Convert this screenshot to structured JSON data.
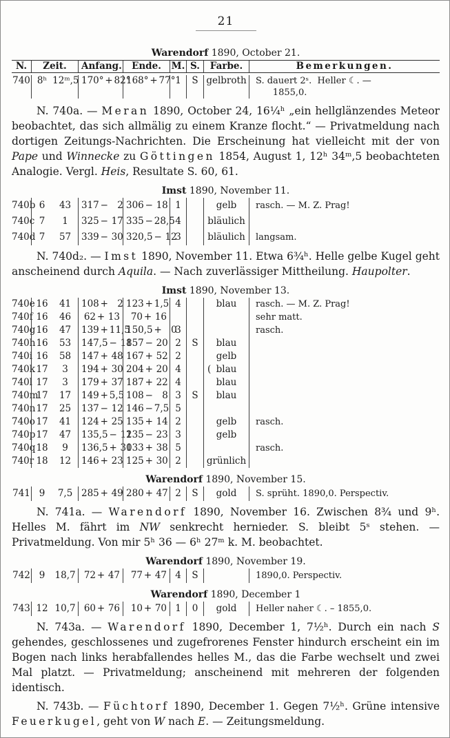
{
  "page": {
    "number": "21"
  },
  "table_headers": [
    "N.",
    "Zeit.",
    "Anfang.",
    "Ende.",
    "M.",
    "S.",
    "Farbe.",
    "Bemerkungen."
  ],
  "sections": [
    {
      "type": "title",
      "seg": [
        {
          "t": "Warendorf",
          "st": "b"
        },
        {
          "t": " 1890, October 21."
        }
      ]
    },
    {
      "type": "table",
      "header": true,
      "rows": [
        {
          "n": "740",
          "h": "8ʰ",
          "min": "12ᵐ,5",
          "anf": [
            "170°",
            "+",
            "82°"
          ],
          "end": [
            "168°",
            "+",
            "77°"
          ],
          "m": "1",
          "s": "S",
          "farbe": "gelbroth",
          "bem": "S. dauert 2ˢ.  Heller ☾. —\n      1855,0."
        }
      ]
    },
    {
      "type": "para",
      "seg": [
        {
          "t": "N. 740a. — "
        },
        {
          "t": "Meran",
          "st": "sp"
        },
        {
          "t": " 1890, October 24, 16¼ʰ „ein hellglänzendes Meteor beobachtet, das sich allmälig zu einem Kranze flocht.“ — Privatmeldung nach dortigen Zeitungs-Nachrichten.  Die Erscheinung hat vielleicht mit der von "
        },
        {
          "t": "Pape",
          "st": "i"
        },
        {
          "t": " und "
        },
        {
          "t": "Winnecke",
          "st": "i"
        },
        {
          "t": " zu "
        },
        {
          "t": "Göttingen",
          "st": "sp"
        },
        {
          "t": " 1854, August 1, 12ʰ 34ᵐ,5 beobachteten Analogie. Vergl. "
        },
        {
          "t": "Heis",
          "st": "i"
        },
        {
          "t": ", Resultate S. 60, 61."
        }
      ]
    },
    {
      "type": "title",
      "seg": [
        {
          "t": "Imst",
          "st": "b"
        },
        {
          "t": " 1890, November 11."
        }
      ]
    },
    {
      "type": "table",
      "rows": [
        {
          "n": "740b",
          "h": "6",
          "min": "43",
          "anf": [
            "317",
            "−",
            "2"
          ],
          "end": [
            "306",
            "−",
            "18"
          ],
          "m": "1",
          "s": "",
          "farbe": "gelb",
          "bem": "rasch. — M. Z. Prag!"
        },
        {
          "n": "740c",
          "h": "7",
          "min": "1",
          "anf": [
            "325",
            "−",
            "17"
          ],
          "end": [
            "335",
            "−",
            "28,5"
          ],
          "m": "4",
          "s": "",
          "farbe": "bläulich",
          "bem": ""
        },
        {
          "n": "740d",
          "h": "7",
          "min": "57",
          "anf": [
            "339",
            "−",
            "30"
          ],
          "end": [
            "320,5",
            "−",
            "12"
          ],
          "m": "3",
          "s": "",
          "farbe": "bläulich",
          "bem": "langsam."
        }
      ]
    },
    {
      "type": "para",
      "seg": [
        {
          "t": "N. 740d₂. — "
        },
        {
          "t": "Imst",
          "st": "sp"
        },
        {
          "t": " 1890, November 11. Etwa 6¾ʰ.  Helle gelbe Kugel geht anscheinend durch "
        },
        {
          "t": "Aquila",
          "st": "i"
        },
        {
          "t": ". — Nach zuverlässiger Mittheilung.  "
        },
        {
          "t": "Haupolter",
          "st": "i"
        },
        {
          "t": "."
        }
      ]
    },
    {
      "type": "title",
      "seg": [
        {
          "t": "Imst",
          "st": "b"
        },
        {
          "t": " 1890, November 13."
        }
      ]
    },
    {
      "type": "table",
      "rows": [
        {
          "n": "740e",
          "h": "16",
          "min": "41",
          "anf": [
            "108",
            "+",
            "2"
          ],
          "end": [
            "123",
            "+",
            "1,5"
          ],
          "m": "4",
          "s": "",
          "farbe": "blau",
          "bem": "rasch. — M. Z. Prag!"
        },
        {
          "n": "740f",
          "h": "16",
          "min": "46",
          "anf": [
            "62",
            "+",
            "13"
          ],
          "end": [
            "70",
            "+",
            "16"
          ],
          "m": "",
          "s": "",
          "farbe": "",
          "bem": "sehr matt."
        },
        {
          "n": "740g",
          "h": "16",
          "min": "47",
          "anf": [
            "139",
            "+",
            "11,5"
          ],
          "end": [
            "150,5",
            "+",
            "0"
          ],
          "m": "3",
          "s": "",
          "farbe": "",
          "bem": "rasch."
        },
        {
          "n": "740h",
          "h": "16",
          "min": "53",
          "anf": [
            "147,5",
            "−",
            "18"
          ],
          "end": [
            "157",
            "−",
            "20"
          ],
          "m": "2",
          "s": "S",
          "farbe": "blau",
          "bem": ""
        },
        {
          "n": "740i",
          "h": "16",
          "min": "58",
          "anf": [
            "147",
            "+",
            "48"
          ],
          "end": [
            "167",
            "+",
            "52"
          ],
          "m": "2",
          "s": "",
          "farbe": "gelb",
          "bem": ""
        },
        {
          "n": "740k",
          "h": "17",
          "min": "3",
          "anf": [
            "194",
            "+",
            "30"
          ],
          "end": [
            "204",
            "+",
            "20"
          ],
          "m": "4",
          "s": "",
          "farbe": "blau",
          "mark": "(",
          "bem": ""
        },
        {
          "n": "740l",
          "h": "17",
          "min": "3",
          "anf": [
            "179",
            "+",
            "37"
          ],
          "end": [
            "187",
            "+",
            "22"
          ],
          "m": "4",
          "s": "",
          "farbe": "blau",
          "bem": ""
        },
        {
          "n": "740m",
          "h": "17",
          "min": "17",
          "anf": [
            "149",
            "+",
            "5,5"
          ],
          "end": [
            "108",
            "−",
            "8"
          ],
          "m": "3",
          "s": "S",
          "farbe": "blau",
          "bem": ""
        },
        {
          "n": "740n",
          "h": "17",
          "min": "25",
          "anf": [
            "137",
            "−",
            "12"
          ],
          "end": [
            "146",
            "−",
            "7,5"
          ],
          "m": "5",
          "s": "",
          "farbe": "",
          "bem": ""
        },
        {
          "n": "740o",
          "h": "17",
          "min": "41",
          "anf": [
            "124",
            "+",
            "25"
          ],
          "end": [
            "135",
            "+",
            "14"
          ],
          "m": "2",
          "s": "",
          "farbe": "gelb",
          "bem": "rasch."
        },
        {
          "n": "740p",
          "h": "17",
          "min": "47",
          "anf": [
            "135,5",
            "−",
            "12"
          ],
          "end": [
            "135",
            "−",
            "23"
          ],
          "m": "3",
          "s": "",
          "farbe": "gelb",
          "bem": ""
        },
        {
          "n": "740q",
          "h": "18",
          "min": "9",
          "anf": [
            "136,5",
            "+",
            "30"
          ],
          "end": [
            "133",
            "+",
            "38"
          ],
          "m": "5",
          "s": "",
          "farbe": "",
          "bem": "rasch."
        },
        {
          "n": "740r",
          "h": "18",
          "min": "12",
          "anf": [
            "146",
            "+",
            "23"
          ],
          "end": [
            "125",
            "+",
            "30"
          ],
          "m": "2",
          "s": "",
          "farbe": "grünlich",
          "bem": ""
        }
      ]
    },
    {
      "type": "title",
      "seg": [
        {
          "t": "Warendorf",
          "st": "b"
        },
        {
          "t": " 1890, November 15."
        }
      ]
    },
    {
      "type": "table",
      "rows": [
        {
          "n": "741",
          "h": "9",
          "min": "7,5",
          "anf": [
            "285",
            "+",
            "49"
          ],
          "end": [
            "280",
            "+",
            "47"
          ],
          "m": "2",
          "s": "S",
          "farbe": "gold",
          "bem": "S. sprüht. 1890,0. Perspectiv."
        }
      ]
    },
    {
      "type": "para",
      "seg": [
        {
          "t": "N. 741a. — "
        },
        {
          "t": "Warendorf",
          "st": "sp"
        },
        {
          "t": " 1890, November 16. Zwischen 8¾ und 9ʰ.  Helles M. fährt im "
        },
        {
          "t": "NW",
          "st": "i"
        },
        {
          "t": " senkrecht hernieder. S. bleibt 5ˢ stehen. — Privatmeldung. Von mir 5ʰ 36 — 6ʰ 27ᵐ k. M. beobachtet."
        }
      ]
    },
    {
      "type": "title",
      "seg": [
        {
          "t": "Warendorf",
          "st": "b"
        },
        {
          "t": " 1890, November 19."
        }
      ]
    },
    {
      "type": "table",
      "rows": [
        {
          "n": "742",
          "h": "9",
          "min": "18,7",
          "anf": [
            "72",
            "+",
            "47"
          ],
          "end": [
            "77",
            "+",
            "47"
          ],
          "m": "4",
          "s": "S",
          "farbe": "",
          "bem": "1890,0. Perspectiv."
        }
      ]
    },
    {
      "type": "title",
      "seg": [
        {
          "t": "Warendorf",
          "st": "b"
        },
        {
          "t": " 1890, December 1"
        }
      ]
    },
    {
      "type": "table",
      "rows": [
        {
          "n": "743",
          "h": "12",
          "min": "10,7",
          "anf": [
            "60",
            "+",
            "76"
          ],
          "end": [
            "10",
            "+",
            "70"
          ],
          "m": "1",
          "s": "0",
          "farbe": "gold",
          "bem": "Heller naher ☾. – 1855,0."
        }
      ]
    },
    {
      "type": "para",
      "seg": [
        {
          "t": "N. 743a. — "
        },
        {
          "t": "Warendorf",
          "st": "sp"
        },
        {
          "t": " 1890, December 1, 7½ʰ.  Durch ein nach "
        },
        {
          "t": "S",
          "st": "i"
        },
        {
          "t": " gehendes, geschlossenes und zugefrorenes Fenster hindurch erscheint ein im Bogen nach links herabfallendes helles M., das die Farbe wechselt und zwei Mal platzt. — Privatmeldung; anscheinend mit mehreren der folgenden identisch."
        }
      ]
    },
    {
      "type": "para",
      "seg": [
        {
          "t": "N. 743b. — "
        },
        {
          "t": "Füchtorf",
          "st": "sp"
        },
        {
          "t": " 1890, December 1.  Gegen 7½ʰ.  Grüne intensive "
        },
        {
          "t": "Feuerkugel",
          "st": "sp"
        },
        {
          "t": ", geht von "
        },
        {
          "t": "W",
          "st": "i"
        },
        {
          "t": " nach "
        },
        {
          "t": "E",
          "st": "i"
        },
        {
          "t": ". — Zeitungsmeldung."
        }
      ]
    }
  ]
}
